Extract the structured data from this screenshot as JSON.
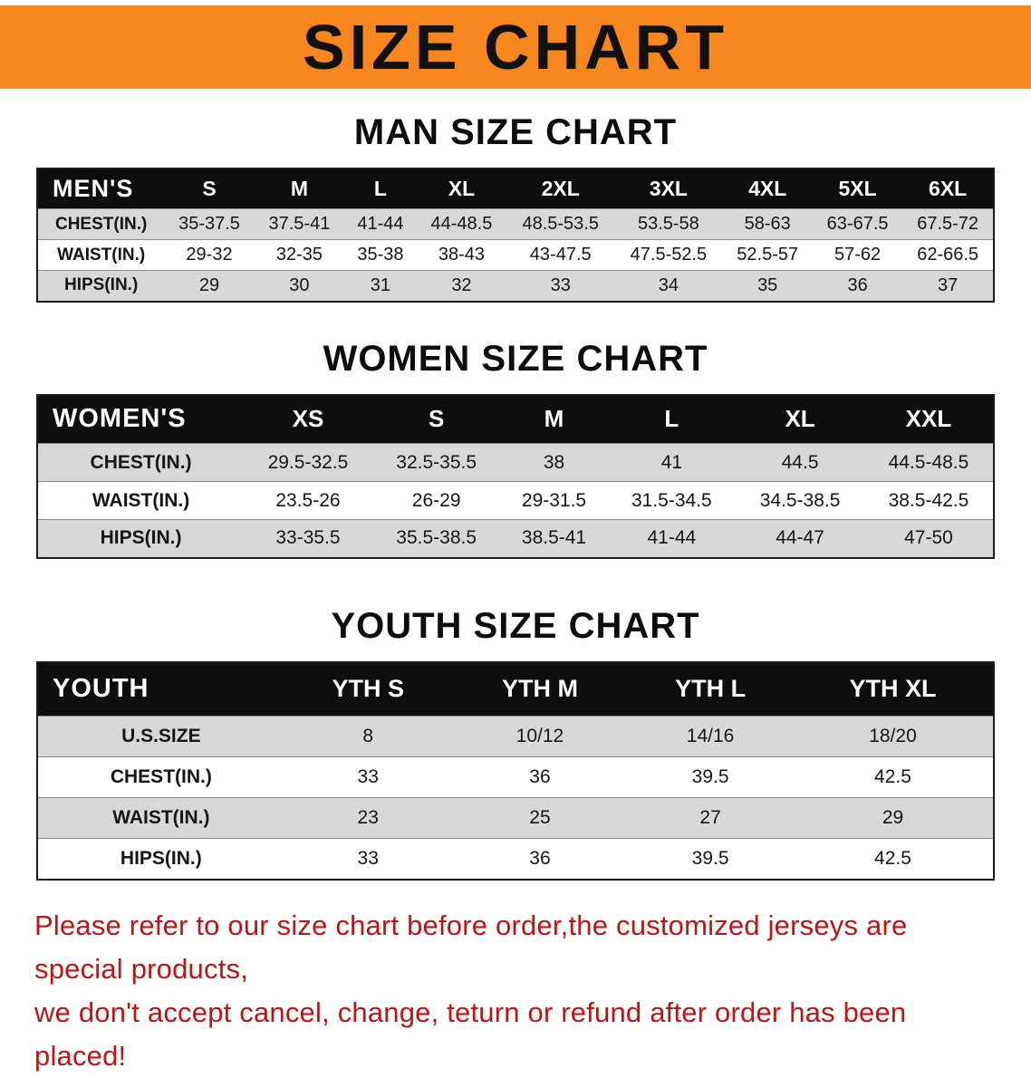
{
  "banner": {
    "title": "SIZE CHART",
    "background_color": "#f6861d",
    "text_color": "#111111"
  },
  "sections": [
    {
      "heading": "MAN SIZE CHART",
      "table": {
        "header": [
          "MEN'S",
          "S",
          "M",
          "L",
          "XL",
          "2XL",
          "3XL",
          "4XL",
          "5XL",
          "6XL"
        ],
        "rows": [
          [
            "CHEST(IN.)",
            "35-37.5",
            "37.5-41",
            "41-44",
            "44-48.5",
            "48.5-53.5",
            "53.5-58",
            "58-63",
            "63-67.5",
            "67.5-72"
          ],
          [
            "WAIST(IN.)",
            "29-32",
            "32-35",
            "35-38",
            "38-43",
            "43-47.5",
            "47.5-52.5",
            "52.5-57",
            "57-62",
            "62-66.5"
          ],
          [
            "HIPS(IN.)",
            "29",
            "30",
            "31",
            "32",
            "33",
            "34",
            "35",
            "36",
            "37"
          ]
        ]
      }
    },
    {
      "heading": "WOMEN SIZE CHART",
      "table": {
        "header": [
          "WOMEN'S",
          "XS",
          "S",
          "M",
          "L",
          "XL",
          "XXL"
        ],
        "rows": [
          [
            "CHEST(IN.)",
            "29.5-32.5",
            "32.5-35.5",
            "38",
            "41",
            "44.5",
            "44.5-48.5"
          ],
          [
            "WAIST(IN.)",
            "23.5-26",
            "26-29",
            "29-31.5",
            "31.5-34.5",
            "34.5-38.5",
            "38.5-42.5"
          ],
          [
            "HIPS(IN.)",
            "33-35.5",
            "35.5-38.5",
            "38.5-41",
            "41-44",
            "44-47",
            "47-50"
          ]
        ]
      }
    },
    {
      "heading": "YOUTH SIZE CHART",
      "table": {
        "header": [
          "YOUTH",
          "YTH S",
          "YTH M",
          "YTH L",
          "YTH XL"
        ],
        "rows": [
          [
            "U.S.SIZE",
            "8",
            "10/12",
            "14/16",
            "18/20"
          ],
          [
            "CHEST(IN.)",
            "33",
            "36",
            "39.5",
            "42.5"
          ],
          [
            "WAIST(IN.)",
            "23",
            "25",
            "27",
            "29"
          ],
          [
            "HIPS(IN.)",
            "33",
            "36",
            "39.5",
            "42.5"
          ]
        ]
      }
    }
  ],
  "style": {
    "row_stripe_color": "#d8d8d8",
    "header_row_color": "#0e0e0e"
  },
  "disclaimer": {
    "line1": "Please refer to our size chart before order,the customized jerseys are special products,",
    "line2": "we don't accept cancel, change, teturn or refund after order has been placed!",
    "color": "#c01414"
  }
}
